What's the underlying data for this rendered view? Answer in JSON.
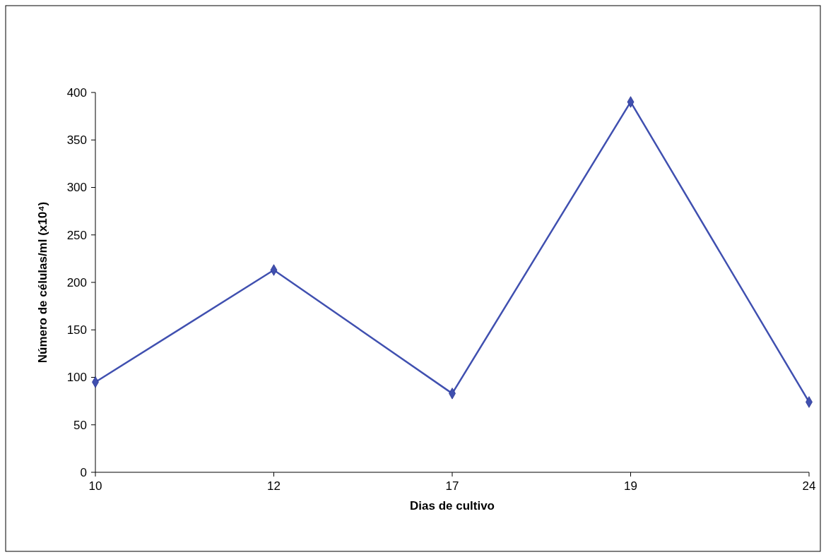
{
  "chart_data": {
    "type": "line",
    "xlabel": "Dias de cultivo",
    "ylabel": "Número de células/ml (x10⁴)",
    "categories": [
      "10",
      "12",
      "17",
      "19",
      "24"
    ],
    "series": [
      {
        "color": "#4050b0",
        "values": [
          95,
          213,
          83,
          390,
          74
        ]
      }
    ],
    "ylim": [
      0,
      400
    ],
    "yticks": [
      0,
      50,
      100,
      150,
      200,
      250,
      300,
      350,
      400
    ],
    "marker": "diamond",
    "line_style": "solid",
    "grid": false
  }
}
